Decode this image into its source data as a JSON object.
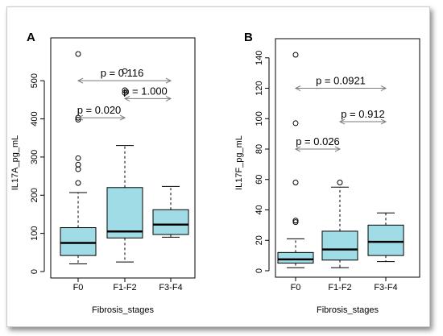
{
  "colors": {
    "box_fill": "#9fdce6",
    "axis": "#000000",
    "bracket": "#7a7a7a"
  },
  "chart_data": [
    {
      "type": "boxplot",
      "panel_label": "A",
      "xlabel": "Fibrosis_stages",
      "ylabel": "IL17A_pg_mL",
      "categories": [
        "F0",
        "F1-F2",
        "F3-F4"
      ],
      "ylim": [
        0,
        570
      ],
      "yticks": [
        0,
        100,
        200,
        300,
        400,
        500
      ],
      "boxes": [
        {
          "category": "F0",
          "whisker_low": 20,
          "q1": 42,
          "median": 75,
          "q3": 115,
          "whisker_high": 207,
          "outliers": [
            232,
            268,
            280,
            297,
            398,
            403,
            570
          ]
        },
        {
          "category": "F1-F2",
          "whisker_low": 25,
          "q1": 88,
          "median": 105,
          "q3": 220,
          "whisker_high": 330,
          "outliers": [
            468,
            475
          ]
        },
        {
          "category": "F3-F4",
          "whisker_low": 90,
          "q1": 97,
          "median": 123,
          "q3": 162,
          "whisker_high": 223,
          "outliers": []
        }
      ],
      "comparisons": [
        {
          "from": "F0",
          "to": "F1-F2",
          "y": 403,
          "label": "p = 0.020"
        },
        {
          "from": "F0",
          "to": "F3-F4",
          "y": 500,
          "label": "p = 0.116"
        },
        {
          "from": "F1-F2",
          "to": "F3-F4",
          "y": 453,
          "label": "p = 1.000"
        }
      ],
      "extra_outlier": {
        "category": "F1-F2",
        "value": 525
      }
    },
    {
      "type": "boxplot",
      "panel_label": "B",
      "xlabel": "Fibrosis_stages",
      "ylabel": "IL17F_pg_mL",
      "categories": [
        "F0",
        "F1-F2",
        "F3-F4"
      ],
      "ylim": [
        0,
        142
      ],
      "yticks": [
        0,
        20,
        40,
        60,
        80,
        100,
        120,
        140
      ],
      "boxes": [
        {
          "category": "F0",
          "whisker_low": 2,
          "q1": 5,
          "median": 7.5,
          "q3": 12,
          "whisker_high": 21,
          "outliers": [
            32,
            33,
            58,
            97,
            142
          ]
        },
        {
          "category": "F1-F2",
          "whisker_low": 2,
          "q1": 7,
          "median": 14,
          "q3": 26,
          "whisker_high": 55,
          "outliers": [
            58
          ]
        },
        {
          "category": "F3-F4",
          "whisker_low": 6,
          "q1": 10,
          "median": 19,
          "q3": 30,
          "whisker_high": 38,
          "outliers": []
        }
      ],
      "comparisons": [
        {
          "from": "F0",
          "to": "F1-F2",
          "y": 80,
          "label": "p = 0.026"
        },
        {
          "from": "F0",
          "to": "F3-F4",
          "y": 120,
          "label": "p = 0.0921"
        },
        {
          "from": "F1-F2",
          "to": "F3-F4",
          "y": 98,
          "label": "p = 0.912"
        }
      ]
    }
  ]
}
